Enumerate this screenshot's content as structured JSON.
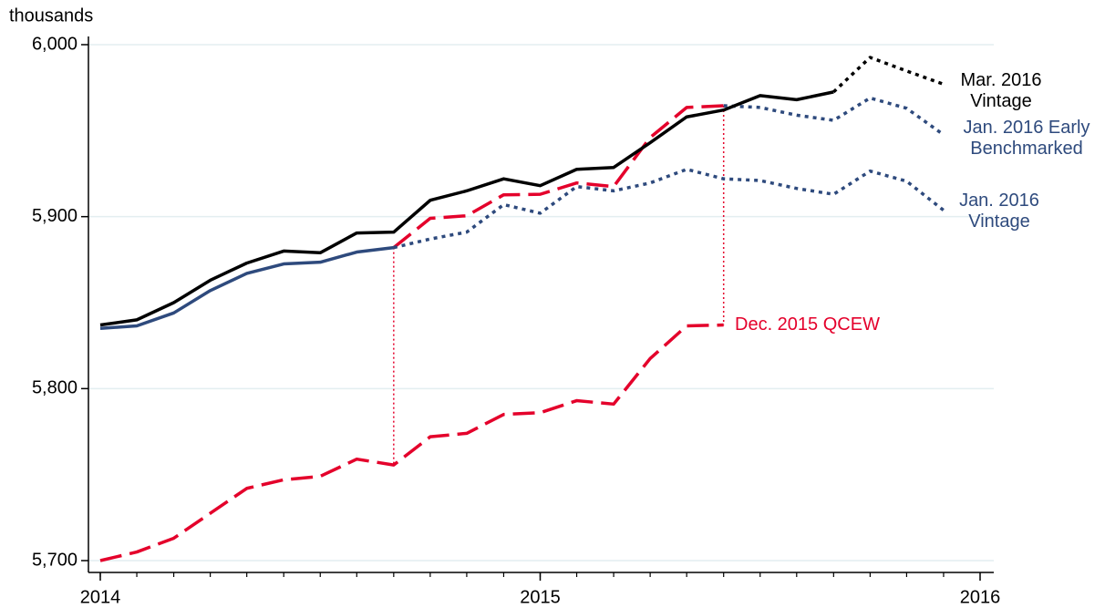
{
  "chart_data": {
    "type": "line",
    "y_axis_label": "thousands",
    "x": [
      2014,
      2014.083,
      2014.167,
      2014.25,
      2014.333,
      2014.417,
      2014.5,
      2014.583,
      2014.667,
      2014.75,
      2014.833,
      2014.917,
      2015,
      2015.083,
      2015.167,
      2015.25,
      2015.333,
      2015.417,
      2015.5,
      2015.583,
      2015.667,
      2015.75,
      2015.833,
      2015.917
    ],
    "xlim": [
      2014,
      2016
    ],
    "xticks": [
      2014,
      2015,
      2016
    ],
    "ylim": [
      5700,
      6000
    ],
    "yticks": [
      {
        "value": 5700,
        "label": "5,700"
      },
      {
        "value": 5800,
        "label": "5,800"
      },
      {
        "value": 5900,
        "label": "5,900"
      },
      {
        "value": 6000,
        "label": "6,000"
      }
    ],
    "grid": true,
    "series": [
      {
        "name": "Mar. 2016 Vintage",
        "color": "#000000",
        "style": "solid",
        "dotted_from": 20,
        "values": [
          5837,
          5840,
          5850,
          5863,
          5873,
          5880,
          5879,
          5890.5,
          5891,
          5909.5,
          5915,
          5922,
          5918,
          5927.5,
          5928.6,
          5943,
          5958,
          5962,
          5970.4,
          5968,
          5972.5,
          5992.6,
          5984.7,
          5977
        ]
      },
      {
        "name": "Jan. 2016 Early Benchmarked",
        "color": "#2e4a7d",
        "style": "dotted",
        "values": [
          null,
          null,
          null,
          null,
          null,
          null,
          null,
          null,
          null,
          null,
          null,
          null,
          null,
          null,
          null,
          null,
          null,
          5964.5,
          5963.5,
          5959,
          5956,
          5969,
          5963,
          5947.6
        ]
      },
      {
        "name": "Jan. 2016 Vintage",
        "color": "#2e4a7d",
        "style": "solid",
        "dotted_from": 8,
        "values": [
          5835,
          5836.5,
          5844,
          5857,
          5867,
          5872.5,
          5873.5,
          5879.4,
          5882,
          5887,
          5891,
          5907,
          5902,
          5917.5,
          5915,
          5919.6,
          5927.5,
          5922,
          5921,
          5916.4,
          5913,
          5926.5,
          5920.6,
          5903.7
        ]
      },
      {
        "color": "#e4002b",
        "style": "dashed",
        "values": [
          null,
          null,
          null,
          null,
          null,
          null,
          null,
          null,
          5882,
          5899,
          5900.5,
          5912.7,
          5913,
          5919.6,
          5917.5,
          5946,
          5963.5,
          5964.5,
          null,
          null,
          null,
          null,
          null,
          null
        ]
      },
      {
        "name": "Dec. 2015 QCEW",
        "color": "#e4002b",
        "style": "dashed",
        "values": [
          5700,
          5705,
          5713,
          5727.5,
          5742,
          5747,
          5749,
          5759,
          5755.6,
          5772,
          5774,
          5785,
          5786,
          5793,
          5791,
          5817.5,
          5836.5,
          5837,
          null,
          null,
          null,
          null,
          null,
          null
        ]
      }
    ]
  }
}
